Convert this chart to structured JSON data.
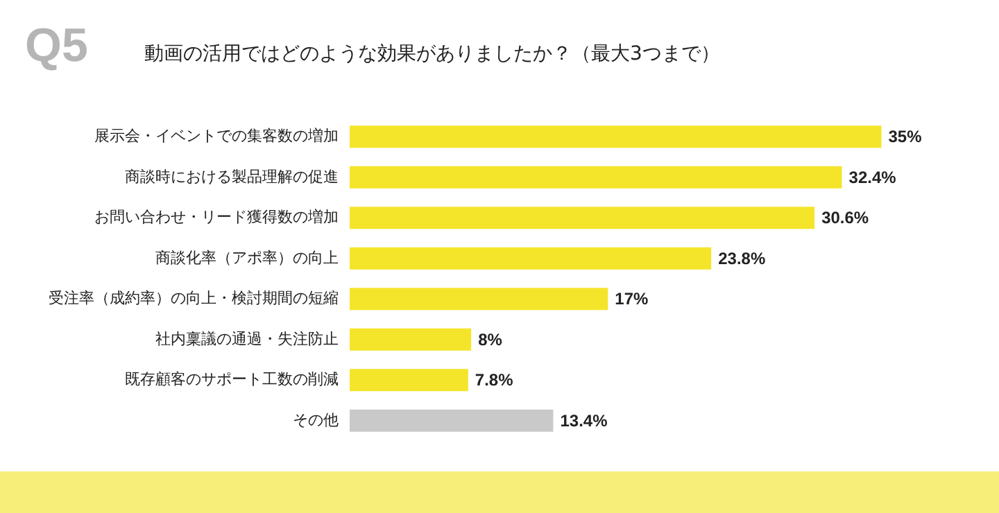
{
  "chart_data": {
    "type": "bar",
    "orientation": "horizontal",
    "title": "Q5",
    "subtitle": "動画の活用ではどのような効果がありましたか？（最大3つまで）",
    "categories": [
      "展示会・イベントでの集客数の増加",
      "商談時における製品理解の促進",
      "お問い合わせ・リード獲得数の増加",
      "商談化率（アポ率）の向上",
      "受注率（成約率）の向上・検討期間の短縮",
      "社内稟議の通過・失注防止",
      "既存顧客のサポート工数の削減",
      "その他"
    ],
    "values": [
      35,
      32.4,
      30.6,
      23.8,
      17,
      8,
      7.8,
      13.4
    ],
    "colors": [
      "#f5e52a",
      "#f5e52a",
      "#f5e52a",
      "#f5e52a",
      "#f5e52a",
      "#f5e52a",
      "#f5e52a",
      "#c9c9c9"
    ],
    "value_labels": [
      "35%",
      "32.4%",
      "30.6%",
      "23.8%",
      "17%",
      "8%",
      "7.8%",
      "13.4%"
    ]
  }
}
